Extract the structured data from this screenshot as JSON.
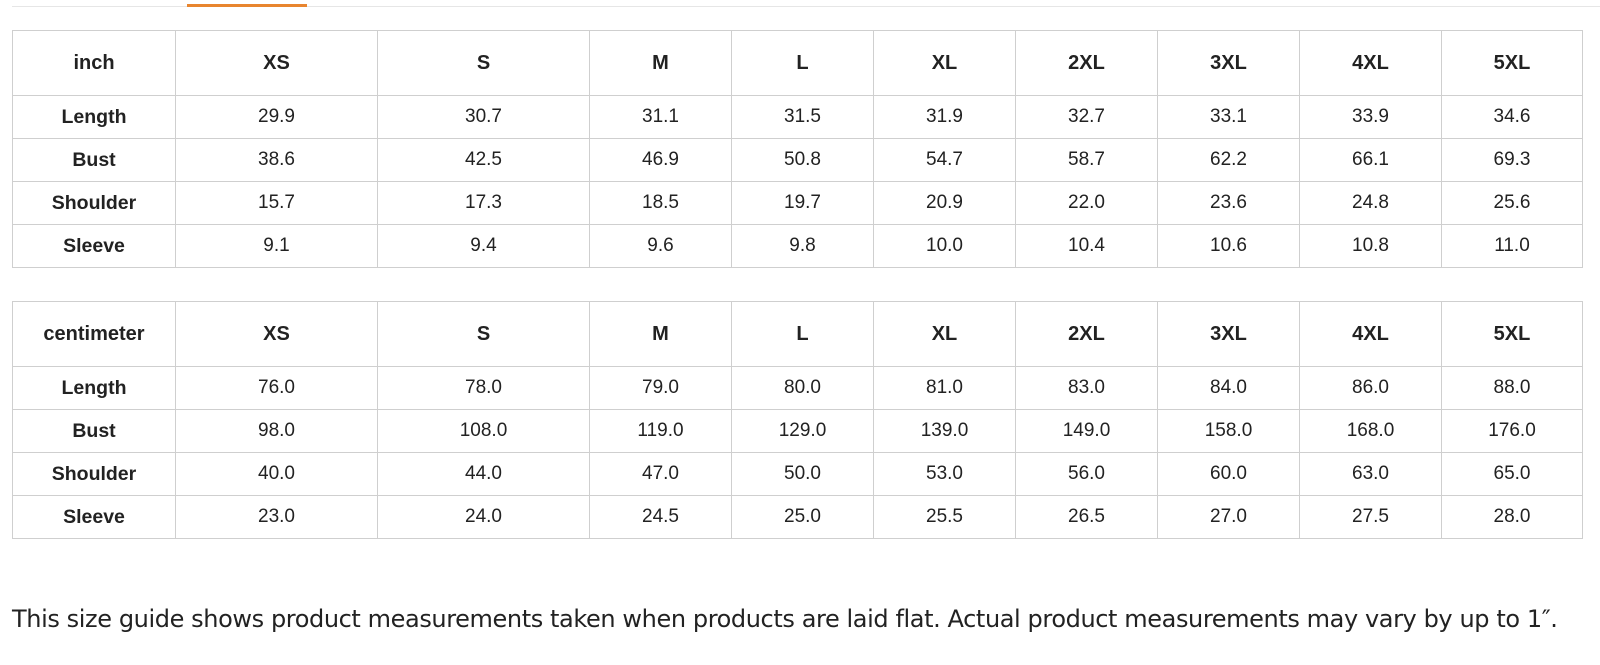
{
  "tabs": {
    "active_indicator_color": "#e8852f"
  },
  "size_columns": [
    "XS",
    "S",
    "M",
    "L",
    "XL",
    "2XL",
    "3XL",
    "4XL",
    "5XL"
  ],
  "tables": [
    {
      "unit": "inch",
      "rows": [
        {
          "label": "Length",
          "values": [
            "29.9",
            "30.7",
            "31.1",
            "31.5",
            "31.9",
            "32.7",
            "33.1",
            "33.9",
            "34.6"
          ]
        },
        {
          "label": "Bust",
          "values": [
            "38.6",
            "42.5",
            "46.9",
            "50.8",
            "54.7",
            "58.7",
            "62.2",
            "66.1",
            "69.3"
          ]
        },
        {
          "label": "Shoulder",
          "values": [
            "15.7",
            "17.3",
            "18.5",
            "19.7",
            "20.9",
            "22.0",
            "23.6",
            "24.8",
            "25.6"
          ]
        },
        {
          "label": "Sleeve",
          "values": [
            "9.1",
            "9.4",
            "9.6",
            "9.8",
            "10.0",
            "10.4",
            "10.6",
            "10.8",
            "11.0"
          ]
        }
      ]
    },
    {
      "unit": "centimeter",
      "rows": [
        {
          "label": "Length",
          "values": [
            "76.0",
            "78.0",
            "79.0",
            "80.0",
            "81.0",
            "83.0",
            "84.0",
            "86.0",
            "88.0"
          ]
        },
        {
          "label": "Bust",
          "values": [
            "98.0",
            "108.0",
            "119.0",
            "129.0",
            "139.0",
            "149.0",
            "158.0",
            "168.0",
            "176.0"
          ]
        },
        {
          "label": "Shoulder",
          "values": [
            "40.0",
            "44.0",
            "47.0",
            "50.0",
            "53.0",
            "56.0",
            "60.0",
            "63.0",
            "65.0"
          ]
        },
        {
          "label": "Sleeve",
          "values": [
            "23.0",
            "24.0",
            "24.5",
            "25.0",
            "25.5",
            "26.5",
            "27.0",
            "27.5",
            "28.0"
          ]
        }
      ]
    }
  ],
  "note": "This size guide shows product measurements taken when products are laid flat. Actual product measurements may vary by up to 1″."
}
